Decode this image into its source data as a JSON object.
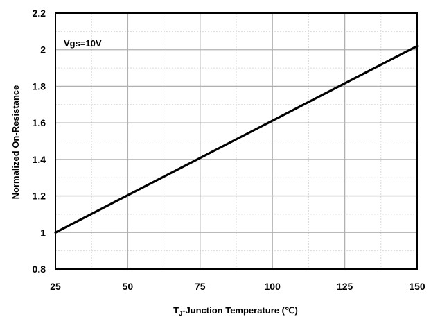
{
  "chart_data": {
    "type": "line",
    "title": "",
    "xlabel": "Junction Temperature (℃)",
    "xlabel_prefix": "T",
    "xlabel_subscript": "J",
    "xlabel_dash": "-",
    "ylabel": "Normalized On-Resistance",
    "xlim": [
      25,
      150
    ],
    "ylim": [
      0.8,
      2.2
    ],
    "xticks": [
      25,
      50,
      75,
      100,
      125,
      150
    ],
    "xtick_labels": [
      "25",
      "50",
      "75",
      "100",
      "125",
      "150"
    ],
    "yticks": [
      0.8,
      1.0,
      1.2,
      1.4,
      1.6,
      1.8,
      2.0,
      2.2
    ],
    "ytick_labels": [
      "0.8",
      "1",
      "1.2",
      "1.4",
      "1.6",
      "1.8",
      "2",
      "2.2"
    ],
    "grid": true,
    "annotation": "Vgs=10V",
    "series": [
      {
        "x": [
          25,
          150
        ],
        "y": [
          1.0,
          2.02
        ],
        "color": "#000000"
      }
    ]
  }
}
